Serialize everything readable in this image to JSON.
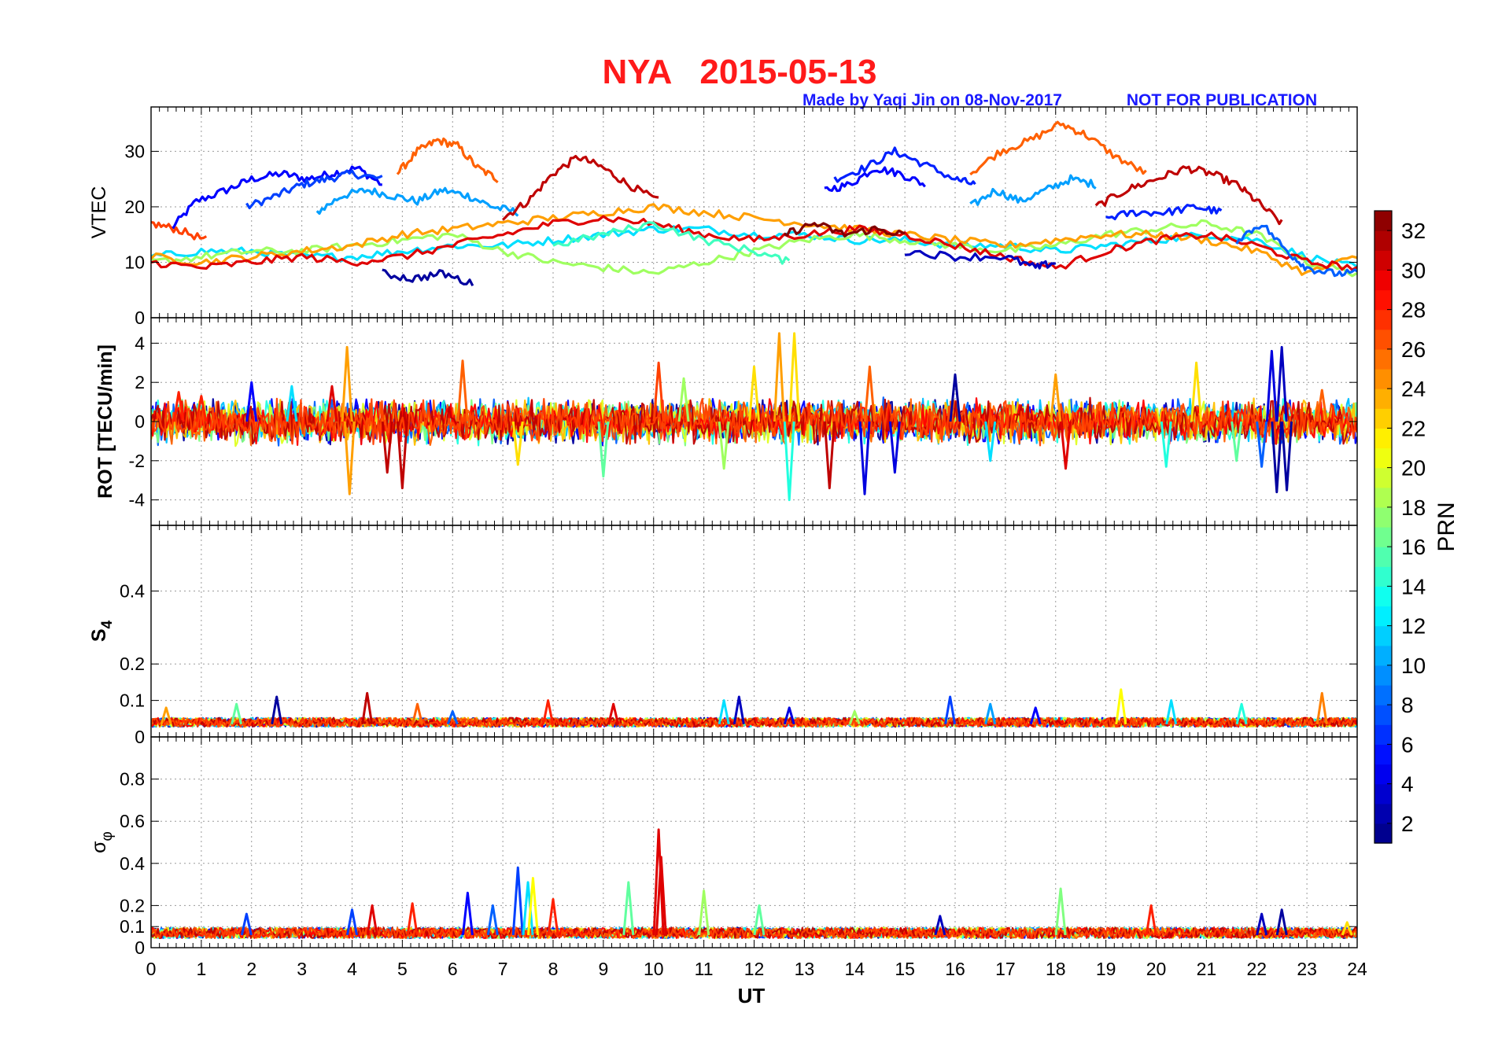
{
  "chart_data": {
    "type": "line",
    "title": "NYA   2015-05-13",
    "credit": "Made by Yaqi Jin on 08-Nov-2017",
    "notice": "NOT FOR PUBLICATION",
    "xlabel": "UT",
    "xlim": [
      0,
      24
    ],
    "xticks": [
      "0",
      "1",
      "2",
      "3",
      "4",
      "5",
      "6",
      "7",
      "8",
      "9",
      "10",
      "11",
      "12",
      "13",
      "14",
      "15",
      "16",
      "17",
      "18",
      "19",
      "20",
      "21",
      "22",
      "23",
      "24"
    ],
    "colorbar": {
      "label": "PRN",
      "range": [
        1,
        33
      ],
      "ticks": [
        "2",
        "4",
        "6",
        "8",
        "10",
        "12",
        "14",
        "16",
        "18",
        "20",
        "22",
        "24",
        "26",
        "28",
        "30",
        "32"
      ]
    },
    "panels": [
      {
        "id": "vtec",
        "ylabel": "VTEC",
        "ylim": [
          0,
          38
        ],
        "yticks": [
          {
            "v": 0,
            "t": "0"
          },
          {
            "v": 10,
            "t": "10"
          },
          {
            "v": 20,
            "t": "20"
          },
          {
            "v": 30,
            "t": "30"
          }
        ],
        "kind": "line",
        "series": [
          {
            "prn": 5,
            "x": [
              0.4,
              0.9,
              1.5,
              2.0,
              2.6,
              3.1,
              3.6,
              4.1,
              4.6
            ],
            "y": [
              16,
              21,
              23,
              25,
              26,
              25,
              26,
              27,
              24
            ]
          },
          {
            "prn": 7,
            "x": [
              1.9,
              2.5,
              3.0,
              3.5,
              4.0,
              4.6
            ],
            "y": [
              20,
              22,
              24,
              25,
              26,
              25
            ]
          },
          {
            "prn": 10,
            "x": [
              3.3,
              3.8,
              4.3,
              4.8,
              5.3,
              5.8,
              6.3,
              6.8,
              7.3
            ],
            "y": [
              19,
              22,
              23,
              22,
              21,
              23,
              22,
              20,
              19
            ]
          },
          {
            "prn": 26,
            "x": [
              4.9,
              5.3,
              5.7,
              6.1,
              6.5,
              6.9
            ],
            "y": [
              26,
              30,
              32,
              31,
              27,
              25
            ]
          },
          {
            "prn": 31,
            "x": [
              7.0,
              7.5,
              8.0,
              8.5,
              9.0,
              9.5,
              10.1
            ],
            "y": [
              18,
              21,
              26,
              29,
              27,
              24,
              21
            ]
          },
          {
            "prn": 27,
            "x": [
              0.0,
              0.5,
              1.1
            ],
            "y": [
              17,
              16,
              14
            ]
          },
          {
            "prn": 5,
            "x": [
              13.4,
              13.9,
              14.4,
              14.9,
              15.4
            ],
            "y": [
              23,
              24,
              27,
              26,
              24
            ]
          },
          {
            "prn": 6,
            "x": [
              13.6,
              14.2,
              14.8,
              15.3,
              16.0,
              16.4
            ],
            "y": [
              25,
              27,
              30,
              28,
              25,
              24
            ]
          },
          {
            "prn": 10,
            "x": [
              16.3,
              16.8,
              17.3,
              17.8,
              18.3,
              18.8
            ],
            "y": [
              20,
              23,
              21,
              23,
              25,
              24
            ]
          },
          {
            "prn": 26,
            "x": [
              16.3,
              16.9,
              17.5,
              18.1,
              18.6,
              19.2,
              19.8
            ],
            "y": [
              26,
              30,
              32,
              35,
              33,
              29,
              26
            ]
          },
          {
            "prn": 31,
            "x": [
              18.8,
              19.4,
              20.0,
              20.6,
              21.1,
              21.6,
              22.0,
              22.5
            ],
            "y": [
              20,
              23,
              25,
              27,
              26,
              24,
              21,
              17
            ]
          },
          {
            "prn": 6,
            "x": [
              19.0,
              19.6,
              20.2,
              20.8,
              21.3
            ],
            "y": [
              18,
              19,
              19,
              20,
              19
            ]
          },
          {
            "prn": 12,
            "x": [
              0,
              1,
              2,
              3,
              4,
              5,
              6,
              7,
              8,
              9,
              10,
              11,
              12,
              13,
              14,
              15,
              16,
              17,
              18,
              19,
              20,
              21,
              22,
              23,
              24
            ],
            "y": [
              11,
              12,
              12,
              11,
              11,
              12,
              13,
              13,
              14,
              15,
              16,
              16,
              15,
              15,
              14,
              14,
              13,
              13,
              12,
              13,
              14,
              15,
              14,
              11,
              9
            ]
          },
          {
            "prn": 18,
            "x": [
              0,
              1,
              2,
              3,
              4,
              5,
              6,
              7,
              8,
              9,
              10,
              11,
              12,
              13,
              14,
              15,
              16,
              17,
              18,
              19,
              20,
              21,
              22,
              23,
              24
            ],
            "y": [
              10,
              11,
              12,
              12,
              13,
              14,
              15,
              12,
              10,
              9,
              8,
              10,
              12,
              14,
              15,
              14,
              13,
              12,
              13,
              15,
              16,
              17,
              15,
              10,
              8
            ]
          },
          {
            "prn": 24,
            "x": [
              0,
              1,
              2,
              3,
              4,
              5,
              6,
              7,
              8,
              9,
              10,
              11,
              12,
              13,
              14,
              15,
              16,
              17,
              18,
              19,
              20,
              21,
              22,
              23,
              24
            ],
            "y": [
              11,
              10,
              11,
              12,
              13,
              15,
              16,
              17,
              18,
              19,
              20,
              19,
              18,
              17,
              16,
              15,
              14,
              13,
              14,
              15,
              15,
              14,
              12,
              8,
              11
            ]
          },
          {
            "prn": 30,
            "x": [
              0,
              1,
              2,
              3,
              4,
              5,
              6,
              7,
              8,
              9,
              10,
              11,
              12,
              13,
              14,
              15,
              16,
              17,
              18,
              19,
              20,
              21,
              22,
              23,
              24
            ],
            "y": [
              10,
              9,
              10,
              11,
              10,
              11,
              13,
              15,
              17,
              18,
              17,
              15,
              14,
              15,
              16,
              15,
              13,
              11,
              9,
              12,
              14,
              15,
              13,
              10,
              9
            ]
          },
          {
            "prn": 2,
            "x": [
              4.6,
              5.2,
              5.8,
              6.4
            ],
            "y": [
              8,
              7,
              8,
              6
            ]
          },
          {
            "prn": 3,
            "x": [
              15.0,
              16.0,
              17.0,
              17.6,
              18.0
            ],
            "y": [
              12,
              11,
              11,
              9,
              10
            ]
          },
          {
            "prn": 15,
            "x": [
              8.0,
              9.0,
              10.0,
              11.0,
              12.0,
              12.7
            ],
            "y": [
              13,
              15,
              17,
              14,
              12,
              10
            ]
          },
          {
            "prn": 8,
            "x": [
              21.6,
              22.1,
              22.6,
              23.0,
              23.5,
              24.0
            ],
            "y": [
              14,
              17,
              12,
              9,
              8,
              8
            ]
          },
          {
            "prn": 33,
            "x": [
              12.6,
              13.2,
              13.8,
              14.4,
              15.0
            ],
            "y": [
              15,
              17,
              15,
              16,
              15
            ]
          }
        ]
      },
      {
        "id": "rot",
        "ylabel": "ROT [TECU/min]",
        "ylim": [
          -5.3,
          5.3
        ],
        "yticks": [
          {
            "v": -4,
            "t": "-4"
          },
          {
            "v": -2,
            "t": "-2"
          },
          {
            "v": 0,
            "t": "0"
          },
          {
            "v": 2,
            "t": "2"
          },
          {
            "v": 4,
            "t": "4"
          }
        ],
        "kind": "noise",
        "base": 0,
        "amp": 0.9,
        "spikes": [
          {
            "x": 0.55,
            "v": 1.5,
            "prn": 28
          },
          {
            "x": 1.0,
            "v": 1.3,
            "prn": 28
          },
          {
            "x": 2.0,
            "v": 2.0,
            "prn": 5
          },
          {
            "x": 2.8,
            "v": 1.8,
            "prn": 12
          },
          {
            "x": 3.6,
            "v": 1.8,
            "prn": 30
          },
          {
            "x": 3.9,
            "v": 3.8,
            "prn": 24
          },
          {
            "x": 3.95,
            "v": -3.7,
            "prn": 24
          },
          {
            "x": 4.7,
            "v": -2.6,
            "prn": 31
          },
          {
            "x": 5.0,
            "v": -3.4,
            "prn": 31
          },
          {
            "x": 6.2,
            "v": 3.1,
            "prn": 26
          },
          {
            "x": 7.3,
            "v": -2.2,
            "prn": 22
          },
          {
            "x": 9.0,
            "v": -2.8,
            "prn": 16
          },
          {
            "x": 10.1,
            "v": 3.0,
            "prn": 27
          },
          {
            "x": 10.6,
            "v": 2.2,
            "prn": 18
          },
          {
            "x": 11.4,
            "v": -2.4,
            "prn": 18
          },
          {
            "x": 12.0,
            "v": 2.8,
            "prn": 22
          },
          {
            "x": 12.5,
            "v": 4.5,
            "prn": 24
          },
          {
            "x": 12.7,
            "v": -4.0,
            "prn": 14
          },
          {
            "x": 12.8,
            "v": 4.5,
            "prn": 22
          },
          {
            "x": 13.5,
            "v": -3.4,
            "prn": 31
          },
          {
            "x": 14.2,
            "v": -3.7,
            "prn": 4
          },
          {
            "x": 14.3,
            "v": 2.8,
            "prn": 26
          },
          {
            "x": 14.8,
            "v": -2.6,
            "prn": 4
          },
          {
            "x": 16.0,
            "v": 2.4,
            "prn": 2
          },
          {
            "x": 16.7,
            "v": -2.0,
            "prn": 12
          },
          {
            "x": 18.0,
            "v": 2.4,
            "prn": 24
          },
          {
            "x": 18.2,
            "v": -2.4,
            "prn": 30
          },
          {
            "x": 20.2,
            "v": -2.3,
            "prn": 14
          },
          {
            "x": 20.8,
            "v": 3.0,
            "prn": 22
          },
          {
            "x": 21.6,
            "v": -2.0,
            "prn": 16
          },
          {
            "x": 22.1,
            "v": -2.3,
            "prn": 8
          },
          {
            "x": 22.3,
            "v": 3.6,
            "prn": 4
          },
          {
            "x": 22.4,
            "v": -3.6,
            "prn": 2
          },
          {
            "x": 22.5,
            "v": 3.8,
            "prn": 3
          },
          {
            "x": 22.6,
            "v": -3.5,
            "prn": 2
          },
          {
            "x": 23.3,
            "v": 1.6,
            "prn": 26
          }
        ]
      },
      {
        "id": "s4",
        "ylabel": "S",
        "ylabel_sub": "4",
        "ylim": [
          0,
          0.58
        ],
        "yticks": [
          {
            "v": 0,
            "t": "0"
          },
          {
            "v": 0.1,
            "t": "0.1"
          },
          {
            "v": 0.2,
            "t": "0.2"
          },
          {
            "v": 0.4,
            "t": "0.4"
          }
        ],
        "kind": "noise",
        "base": 0.035,
        "amp": 0.025,
        "spikes": [
          {
            "x": 0.3,
            "v": 0.08,
            "prn": 24
          },
          {
            "x": 1.7,
            "v": 0.09,
            "prn": 16
          },
          {
            "x": 2.5,
            "v": 0.11,
            "prn": 2
          },
          {
            "x": 4.3,
            "v": 0.12,
            "prn": 31
          },
          {
            "x": 5.3,
            "v": 0.09,
            "prn": 26
          },
          {
            "x": 6.0,
            "v": 0.07,
            "prn": 8
          },
          {
            "x": 7.9,
            "v": 0.1,
            "prn": 28
          },
          {
            "x": 9.2,
            "v": 0.09,
            "prn": 30
          },
          {
            "x": 11.4,
            "v": 0.1,
            "prn": 12
          },
          {
            "x": 11.7,
            "v": 0.11,
            "prn": 3
          },
          {
            "x": 12.7,
            "v": 0.08,
            "prn": 4
          },
          {
            "x": 14.0,
            "v": 0.07,
            "prn": 18
          },
          {
            "x": 15.9,
            "v": 0.11,
            "prn": 7
          },
          {
            "x": 16.7,
            "v": 0.09,
            "prn": 10
          },
          {
            "x": 17.6,
            "v": 0.08,
            "prn": 5
          },
          {
            "x": 19.3,
            "v": 0.13,
            "prn": 21
          },
          {
            "x": 20.3,
            "v": 0.1,
            "prn": 12
          },
          {
            "x": 21.7,
            "v": 0.09,
            "prn": 14
          },
          {
            "x": 23.3,
            "v": 0.12,
            "prn": 25
          }
        ]
      },
      {
        "id": "sigphi",
        "ylabel": "σ",
        "ylabel_sub": "φ",
        "ylim": [
          0,
          1.0
        ],
        "yticks": [
          {
            "v": 0,
            "t": "0"
          },
          {
            "v": 0.1,
            "t": "0.1"
          },
          {
            "v": 0.2,
            "t": "0.2"
          },
          {
            "v": 0.4,
            "t": "0.4"
          },
          {
            "v": 0.6,
            "t": "0.6"
          },
          {
            "v": 0.8,
            "t": "0.8"
          }
        ],
        "kind": "noise",
        "base": 0.06,
        "amp": 0.05,
        "spikes": [
          {
            "x": 1.9,
            "v": 0.16,
            "prn": 7
          },
          {
            "x": 4.0,
            "v": 0.18,
            "prn": 7
          },
          {
            "x": 4.4,
            "v": 0.2,
            "prn": 30
          },
          {
            "x": 5.2,
            "v": 0.21,
            "prn": 28
          },
          {
            "x": 6.3,
            "v": 0.26,
            "prn": 5
          },
          {
            "x": 6.8,
            "v": 0.2,
            "prn": 8
          },
          {
            "x": 7.3,
            "v": 0.38,
            "prn": 7
          },
          {
            "x": 7.5,
            "v": 0.31,
            "prn": 12
          },
          {
            "x": 7.6,
            "v": 0.33,
            "prn": 21
          },
          {
            "x": 8.0,
            "v": 0.23,
            "prn": 28
          },
          {
            "x": 9.5,
            "v": 0.31,
            "prn": 16
          },
          {
            "x": 10.1,
            "v": 0.56,
            "prn": 30
          },
          {
            "x": 10.15,
            "v": 0.43,
            "prn": 30
          },
          {
            "x": 11.0,
            "v": 0.27,
            "prn": 18
          },
          {
            "x": 12.1,
            "v": 0.2,
            "prn": 16
          },
          {
            "x": 15.7,
            "v": 0.15,
            "prn": 3
          },
          {
            "x": 18.1,
            "v": 0.28,
            "prn": 17
          },
          {
            "x": 19.9,
            "v": 0.2,
            "prn": 28
          },
          {
            "x": 22.1,
            "v": 0.16,
            "prn": 3
          },
          {
            "x": 22.5,
            "v": 0.18,
            "prn": 2
          },
          {
            "x": 23.8,
            "v": 0.12,
            "prn": 22
          }
        ]
      }
    ]
  }
}
